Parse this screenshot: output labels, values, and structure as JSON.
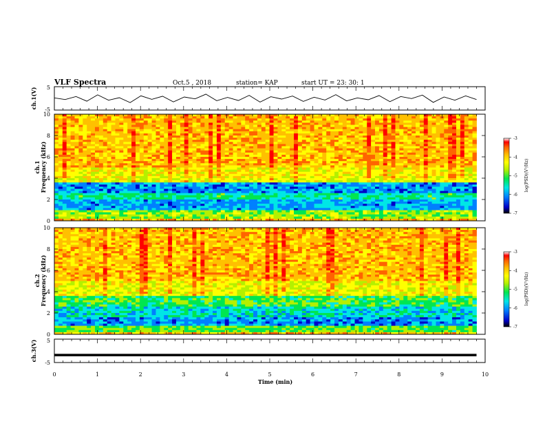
{
  "header": {
    "title": "VLF Spectra",
    "date": "Oct.5 , 2018",
    "station": "station= KAP",
    "start_time": "start  UT =  23: 30: 1"
  },
  "colors": {
    "scale": [
      "#000000",
      "#0000c8",
      "#0080ff",
      "#00e6e6",
      "#00e650",
      "#b4f000",
      "#ffff00",
      "#ffc000",
      "#ff6400",
      "#ff0000",
      "#ffffff"
    ],
    "trace": "#000000",
    "axes": "#000000"
  },
  "chart_data": [
    {
      "id": "ch1-waveform",
      "type": "line",
      "ylabel": "ch.1(V)",
      "ylim": [
        -5,
        5
      ],
      "yticks": [
        "5",
        "-5"
      ],
      "xlim": [
        0,
        10
      ],
      "series": [
        {
          "values": [
            0.2,
            -0.5,
            0.8,
            -1.2,
            1.5,
            -0.8,
            0.3,
            -1.8,
            1.1,
            -0.4,
            0.9,
            -1.5,
            0.6,
            -0.2,
            1.8,
            -1.0,
            0.4,
            -0.9,
            1.3,
            -1.6,
            0.7,
            -0.3,
            1.0,
            -1.3,
            0.5,
            -0.7,
            1.6,
            -1.1,
            0.2,
            -0.6,
            1.2,
            -1.4,
            0.8,
            -0.1,
            1.4,
            -1.7,
            0.6,
            -0.8,
            1.1,
            -0.5
          ]
        }
      ]
    },
    {
      "id": "ch1-spectrogram",
      "type": "heatmap",
      "xlim": [
        0,
        10
      ],
      "ylim": [
        0,
        10
      ],
      "yticks": [
        "0",
        "2",
        "4",
        "6",
        "8",
        "10"
      ],
      "ylabel": "ch.1\nFrequency (kHz)",
      "colorbar": {
        "label": "log(PSD)(V²/Hz)",
        "range": [
          -7,
          -3
        ],
        "ticks": [
          "-3",
          "-4",
          "-5",
          "-6",
          "-7"
        ]
      },
      "freq_profile": [
        {
          "f": [
            0,
            0.3
          ],
          "v": -3.6
        },
        {
          "f": [
            0.3,
            0.9
          ],
          "v": -4.6
        },
        {
          "f": [
            0.9,
            1.1
          ],
          "v": -5.3
        },
        {
          "f": [
            1.1,
            2.0
          ],
          "v": -5.7
        },
        {
          "f": [
            2.0,
            2.6
          ],
          "v": -5.2
        },
        {
          "f": [
            2.6,
            3.6
          ],
          "v": -5.8
        },
        {
          "f": [
            3.6,
            4.0
          ],
          "v": -4.3
        },
        {
          "f": [
            4.0,
            5.0
          ],
          "v": -4.1
        },
        {
          "f": [
            5.0,
            10.0
          ],
          "v": -3.7
        }
      ]
    },
    {
      "id": "ch2-spectrogram",
      "type": "heatmap",
      "xlim": [
        0,
        10
      ],
      "ylim": [
        0,
        10
      ],
      "yticks": [
        "0",
        "2",
        "4",
        "6",
        "8",
        "10"
      ],
      "ylabel": "ch.2\nFrequency (kHz)",
      "colorbar": {
        "label": "log(PSD)(V²/Hz)",
        "range": [
          -7,
          -3
        ],
        "ticks": [
          "-3",
          "-4",
          "-5",
          "-6",
          "-7"
        ]
      },
      "freq_profile": [
        {
          "f": [
            0,
            0.3
          ],
          "v": -3.7
        },
        {
          "f": [
            0.3,
            0.8
          ],
          "v": -4.8
        },
        {
          "f": [
            0.8,
            1.6
          ],
          "v": -5.8
        },
        {
          "f": [
            1.6,
            2.6
          ],
          "v": -5.4
        },
        {
          "f": [
            2.6,
            3.6
          ],
          "v": -4.9
        },
        {
          "f": [
            3.6,
            5.0
          ],
          "v": -4.2
        },
        {
          "f": [
            5.0,
            10.0
          ],
          "v": -3.7
        }
      ]
    },
    {
      "id": "ch3-waveform",
      "type": "line",
      "ylabel": "ch.3(V)",
      "ylim": [
        -5,
        5
      ],
      "yticks": [
        "5",
        "-5"
      ],
      "xlim": [
        0,
        10
      ],
      "series": [
        {
          "values": [
            -1.8,
            -1.8,
            -1.8,
            -1.8,
            -1.8,
            -1.8,
            -1.8,
            -1.8,
            -1.8,
            -1.8,
            -1.8,
            -1.8
          ]
        }
      ]
    }
  ],
  "xaxis": {
    "label": "Time (min)",
    "ticks": [
      "0",
      "1",
      "2",
      "3",
      "4",
      "5",
      "6",
      "7",
      "8",
      "9",
      "10"
    ],
    "range": [
      0,
      10
    ]
  }
}
